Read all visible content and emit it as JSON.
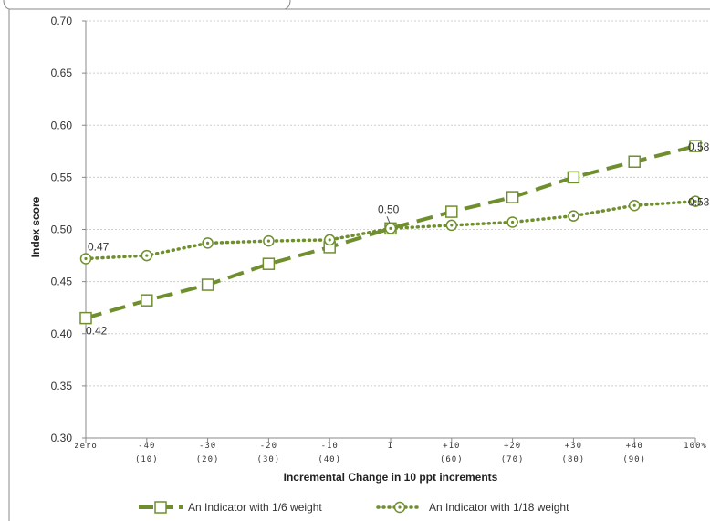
{
  "chart_data": {
    "type": "line",
    "ylabel": "Index score",
    "xlabel": "Incremental Change in 10 ppt increments",
    "ylim": [
      0.3,
      0.7
    ],
    "yticks": [
      "0.30",
      "0.35",
      "0.40",
      "0.45",
      "0.50",
      "0.55",
      "0.60",
      "0.65",
      "0.70"
    ],
    "categories": [
      {
        "top": "zero",
        "bottom": ""
      },
      {
        "top": "-40",
        "bottom": "(10)"
      },
      {
        "top": "-30",
        "bottom": "(20)"
      },
      {
        "top": "-20",
        "bottom": "(30)"
      },
      {
        "top": "-10",
        "bottom": "(40)"
      },
      {
        "top": "I",
        "bottom": ""
      },
      {
        "top": "+10",
        "bottom": "(60)"
      },
      {
        "top": "+20",
        "bottom": "(70)"
      },
      {
        "top": "+30",
        "bottom": "(80)"
      },
      {
        "top": "+40",
        "bottom": "(90)"
      },
      {
        "top": "100%",
        "bottom": ""
      }
    ],
    "series": [
      {
        "name": "An Indicator with 1/6 weight",
        "style": "dashed-square",
        "color": "#6f8f2f",
        "values": [
          0.415,
          0.432,
          0.447,
          0.467,
          0.483,
          0.501,
          0.517,
          0.531,
          0.55,
          0.565,
          0.58
        ]
      },
      {
        "name": "An Indicator with 1/18 weight",
        "style": "dotted-circle",
        "color": "#6f8f2f",
        "values": [
          0.472,
          0.475,
          0.487,
          0.489,
          0.49,
          0.501,
          0.504,
          0.507,
          0.513,
          0.523,
          0.527
        ]
      }
    ],
    "data_labels": [
      {
        "series": 0,
        "index": 0,
        "text": "0.42"
      },
      {
        "series": 1,
        "index": 0,
        "text": "0.47"
      },
      {
        "series": 0,
        "index": 5,
        "text": "0.50"
      },
      {
        "series": 0,
        "index": 10,
        "text": "0.58"
      },
      {
        "series": 1,
        "index": 10,
        "text": "0.53"
      }
    ],
    "grid": true,
    "legend": "bottom"
  }
}
